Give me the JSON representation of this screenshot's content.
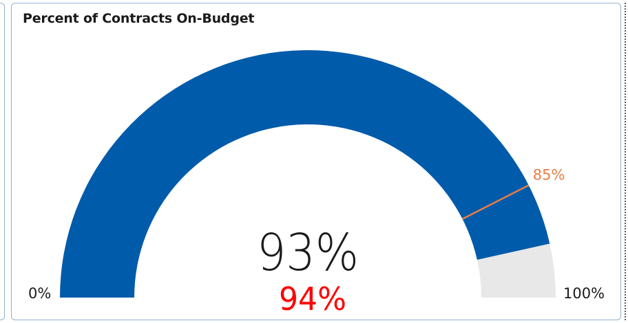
{
  "title": "Percent of Contracts On-Budget",
  "chart_data": {
    "type": "gauge",
    "title": "Percent of Contracts On-Budget",
    "min": 0,
    "max": 100,
    "min_label": "0%",
    "max_label": "100%",
    "value": 93,
    "value_label": "93%",
    "target": 85,
    "target_label": "85%",
    "secondary_value": 94,
    "secondary_label": "94%",
    "colors": {
      "fill": "#005BAA",
      "track": "#E8E8E8",
      "target": "#E97E45",
      "target_label": "#E97E45",
      "value_label": "#1A1A1A",
      "secondary_label": "#FF0000",
      "axis_label": "#1A1A1A"
    }
  }
}
